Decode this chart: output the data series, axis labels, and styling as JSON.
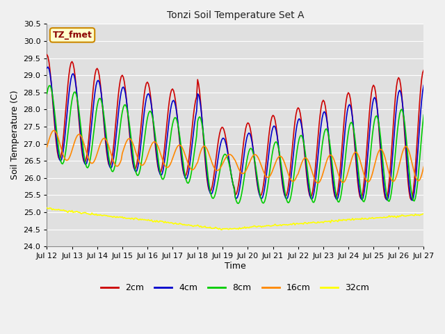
{
  "title": "Tonzi Soil Temperature Set A",
  "xlabel": "Time",
  "ylabel": "Soil Temperature (C)",
  "ylim": [
    24.0,
    30.5
  ],
  "xlim": [
    0,
    360
  ],
  "xtick_labels": [
    "Jul 12",
    "Jul 13",
    "Jul 14",
    "Jul 15",
    "Jul 16",
    "Jul 17",
    "Jul 18",
    "Jul 19",
    "Jul 20",
    "Jul 21",
    "Jul 22",
    "Jul 23",
    "Jul 24",
    "Jul 25",
    "Jul 26",
    "Jul 27"
  ],
  "xtick_positions": [
    0,
    24,
    48,
    72,
    96,
    120,
    144,
    168,
    192,
    216,
    240,
    264,
    288,
    312,
    336,
    360
  ],
  "legend_labels": [
    "2cm",
    "4cm",
    "8cm",
    "16cm",
    "32cm"
  ],
  "annotation_text": "TZ_fmet",
  "annotation_bg": "#ffffcc",
  "annotation_border": "#cc8800",
  "plot_bg_color": "#e0e0e0",
  "fig_bg_color": "#f0f0f0",
  "grid_color": "#ffffff",
  "line_colors": {
    "2cm": "#cc0000",
    "4cm": "#0000cc",
    "8cm": "#00cc00",
    "16cm": "#ff8800",
    "32cm": "#ffff00"
  },
  "line_width": 1.2
}
